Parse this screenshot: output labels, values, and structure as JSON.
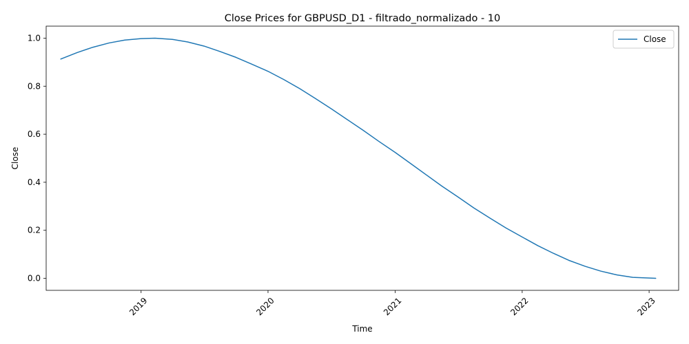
{
  "chart_data": {
    "type": "line",
    "title": "Close Prices for GBPUSD_D1 - filtrado_normalizado - 10",
    "xlabel": "Time",
    "ylabel": "Close",
    "x_ticks": [
      "2019",
      "2020",
      "2021",
      "2022",
      "2023"
    ],
    "y_ticks": [
      "0.0",
      "0.2",
      "0.4",
      "0.6",
      "0.8",
      "1.0"
    ],
    "xlim": [
      "2018-04-03",
      "2023-03-27"
    ],
    "ylim": [
      -0.05,
      1.05
    ],
    "grid": false,
    "legend": {
      "position": "top-right",
      "entries": [
        "Close"
      ]
    },
    "series": [
      {
        "name": "Close",
        "color": "#1f77b4",
        "x": [
          "2018-05-15",
          "2018-07-01",
          "2018-08-15",
          "2018-10-01",
          "2018-11-15",
          "2019-01-01",
          "2019-02-10",
          "2019-04-01",
          "2019-05-15",
          "2019-07-01",
          "2019-08-15",
          "2019-10-01",
          "2019-11-15",
          "2020-01-01",
          "2020-02-15",
          "2020-04-01",
          "2020-05-15",
          "2020-07-01",
          "2020-08-15",
          "2020-10-01",
          "2020-11-15",
          "2021-01-01",
          "2021-02-15",
          "2021-04-01",
          "2021-05-15",
          "2021-07-01",
          "2021-08-15",
          "2021-10-01",
          "2021-11-15",
          "2022-01-01",
          "2022-02-15",
          "2022-04-01",
          "2022-05-15",
          "2022-07-01",
          "2022-08-15",
          "2022-10-01",
          "2022-11-15",
          "2023-01-20"
        ],
        "y": [
          0.913,
          0.94,
          0.962,
          0.98,
          0.992,
          0.998,
          1.0,
          0.995,
          0.984,
          0.967,
          0.945,
          0.92,
          0.892,
          0.862,
          0.828,
          0.79,
          0.75,
          0.706,
          0.662,
          0.616,
          0.57,
          0.524,
          0.477,
          0.43,
          0.384,
          0.338,
          0.293,
          0.25,
          0.21,
          0.172,
          0.136,
          0.104,
          0.075,
          0.05,
          0.03,
          0.014,
          0.004,
          0.0
        ]
      }
    ]
  }
}
